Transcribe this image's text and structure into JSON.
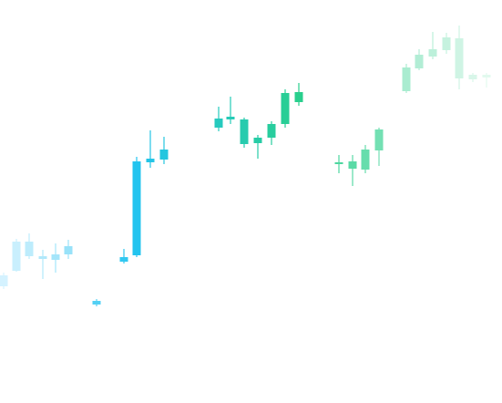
{
  "chart_data": {
    "type": "candlestick",
    "title": "",
    "xlabel": "",
    "ylabel": "",
    "ylim": [
      0,
      442
    ],
    "grid": false,
    "legend": "none",
    "gradient_colors": [
      "#cbefff",
      "#23c4f0",
      "#29cf8c",
      "#e8faf1"
    ],
    "candles": [
      {
        "x": 4,
        "open": 128,
        "close": 140,
        "high": 143,
        "low": 125
      },
      {
        "x": 18,
        "open": 145,
        "close": 177,
        "high": 180,
        "low": 144
      },
      {
        "x": 32,
        "open": 161,
        "close": 177,
        "high": 186,
        "low": 158
      },
      {
        "x": 47,
        "open": 158,
        "close": 161,
        "high": 168,
        "low": 136
      },
      {
        "x": 61,
        "open": 157,
        "close": 163,
        "high": 175,
        "low": 143
      },
      {
        "x": 75,
        "open": 163,
        "close": 172,
        "high": 179,
        "low": 158
      },
      {
        "x": 106,
        "open": 108,
        "close": 112,
        "high": 114,
        "low": 106
      },
      {
        "x": 136,
        "open": 155,
        "close": 160,
        "high": 169,
        "low": 153
      },
      {
        "x": 150,
        "open": 162,
        "close": 265,
        "high": 270,
        "low": 160
      },
      {
        "x": 165,
        "open": 264,
        "close": 268,
        "high": 299,
        "low": 258
      },
      {
        "x": 180,
        "open": 267,
        "close": 278,
        "high": 292,
        "low": 262
      },
      {
        "x": 240,
        "open": 302,
        "close": 312,
        "high": 325,
        "low": 298
      },
      {
        "x": 253,
        "open": 311,
        "close": 314,
        "high": 336,
        "low": 306
      },
      {
        "x": 268,
        "open": 284,
        "close": 311,
        "high": 313,
        "low": 280
      },
      {
        "x": 283,
        "open": 285,
        "close": 291,
        "high": 294,
        "low": 268
      },
      {
        "x": 298,
        "open": 291,
        "close": 306,
        "high": 309,
        "low": 283
      },
      {
        "x": 313,
        "open": 306,
        "close": 340,
        "high": 344,
        "low": 302
      },
      {
        "x": 328,
        "open": 330,
        "close": 341,
        "high": 351,
        "low": 326
      },
      {
        "x": 372,
        "open": 263,
        "close": 264,
        "high": 272,
        "low": 252
      },
      {
        "x": 387,
        "open": 257,
        "close": 265,
        "high": 272,
        "low": 238
      },
      {
        "x": 401,
        "open": 256,
        "close": 278,
        "high": 283,
        "low": 252
      },
      {
        "x": 416,
        "open": 277,
        "close": 300,
        "high": 302,
        "low": 260
      },
      {
        "x": 446,
        "open": 342,
        "close": 368,
        "high": 372,
        "low": 340
      },
      {
        "x": 460,
        "open": 367,
        "close": 382,
        "high": 388,
        "low": 365
      },
      {
        "x": 475,
        "open": 380,
        "close": 388,
        "high": 407,
        "low": 377
      },
      {
        "x": 490,
        "open": 387,
        "close": 401,
        "high": 406,
        "low": 383
      },
      {
        "x": 504,
        "open": 356,
        "close": 400,
        "high": 414,
        "low": 344
      },
      {
        "x": 519,
        "open": 355,
        "close": 360,
        "high": 362,
        "low": 352
      },
      {
        "x": 534,
        "open": 357,
        "close": 360,
        "high": 362,
        "low": 346
      }
    ]
  }
}
